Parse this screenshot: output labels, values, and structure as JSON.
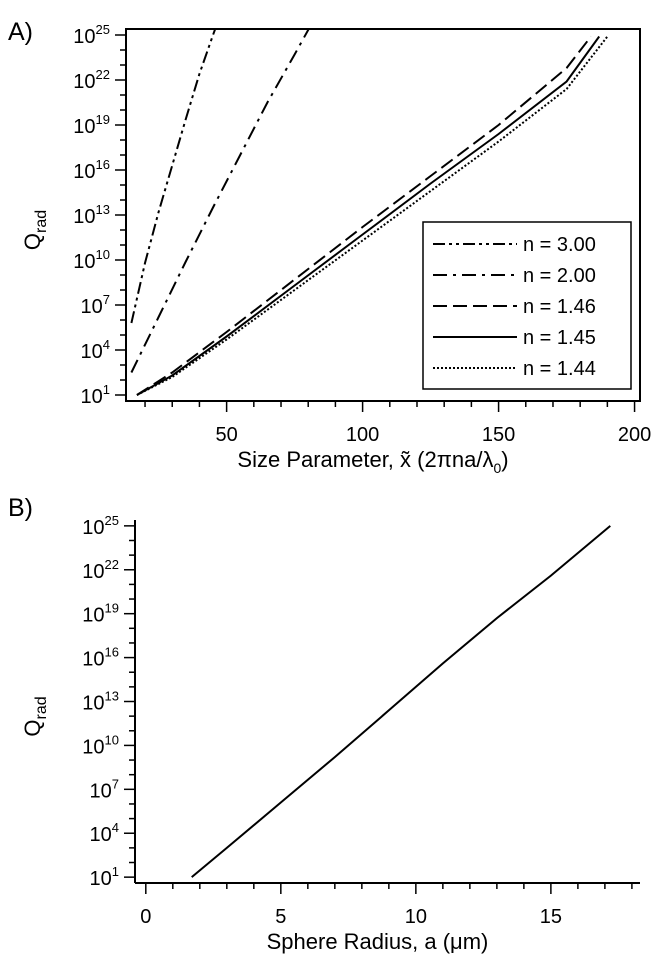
{
  "chart_data": [
    {
      "type": "line",
      "panel_label": "A)",
      "xlabel": "Size Parameter, x̃ (2πna/λ",
      "xlabel_sub": "0",
      "xlabel_close": ")",
      "ylabel": "Q",
      "ylabel_sub": "rad",
      "xlim": [
        13,
        202
      ],
      "ylim_log10": [
        0.6,
        25.4
      ],
      "y_scale": "log",
      "xticks": [
        50,
        100,
        150,
        200
      ],
      "xtick_labels": [
        "50",
        "100",
        "150",
        "200"
      ],
      "yticks_exp": [
        1,
        4,
        7,
        10,
        13,
        16,
        19,
        22,
        25
      ],
      "ytick_base": "10",
      "ytick_exp_labels": [
        "1",
        "4",
        "7",
        "10",
        "13",
        "16",
        "19",
        "22",
        "25"
      ],
      "legend_position": "bottom-right",
      "series": [
        {
          "name": "n = 3.00",
          "dash": "dash-dot-dot",
          "x": [
            15,
            20,
            25,
            30,
            35,
            40,
            45,
            47
          ],
          "log10_y": [
            5.8,
            9.8,
            13.2,
            16.3,
            19.4,
            22.4,
            25.0,
            26.0
          ]
        },
        {
          "name": "n = 2.00",
          "dash": "dash-dot",
          "x": [
            15,
            25,
            35,
            45,
            55,
            65,
            75,
            82
          ],
          "log10_y": [
            2.5,
            6.2,
            9.9,
            13.5,
            17.0,
            20.5,
            23.7,
            26.0
          ]
        },
        {
          "name": "n = 1.46",
          "dash": "dash",
          "x": [
            17,
            30,
            50,
            75,
            100,
            125,
            150,
            175,
            184
          ],
          "log10_y": [
            1.0,
            2.5,
            5.2,
            8.7,
            12.2,
            15.6,
            19.0,
            22.8,
            24.9
          ]
        },
        {
          "name": "n = 1.45",
          "dash": "solid",
          "x": [
            17,
            30,
            50,
            75,
            100,
            125,
            150,
            175,
            187
          ],
          "log10_y": [
            1.0,
            2.3,
            4.9,
            8.3,
            11.7,
            15.1,
            18.4,
            21.9,
            24.9
          ]
        },
        {
          "name": "n = 1.44",
          "dash": "dotted",
          "x": [
            17,
            30,
            50,
            75,
            100,
            125,
            150,
            175,
            190
          ],
          "log10_y": [
            1.0,
            2.2,
            4.7,
            8.0,
            11.3,
            14.6,
            17.9,
            21.4,
            24.9
          ]
        }
      ]
    },
    {
      "type": "line",
      "panel_label": "B)",
      "xlabel": "Sphere Radius, a (μm)",
      "ylabel": "Q",
      "ylabel_sub": "rad",
      "xlim": [
        -0.4,
        18.3
      ],
      "ylim_log10": [
        0.6,
        25.4
      ],
      "y_scale": "log",
      "xticks": [
        0,
        5,
        10,
        15
      ],
      "xtick_labels": [
        "0",
        "5",
        "10",
        "15"
      ],
      "xminor_step": 1,
      "yticks_exp": [
        1,
        4,
        7,
        10,
        13,
        16,
        19,
        22,
        25
      ],
      "ytick_base": "10",
      "ytick_exp_labels": [
        "1",
        "4",
        "7",
        "10",
        "13",
        "16",
        "19",
        "22",
        "25"
      ],
      "series": [
        {
          "dash": "solid",
          "x": [
            1.7,
            3,
            5,
            7,
            9,
            11,
            13,
            15,
            17.2
          ],
          "log10_y": [
            1.0,
            3.0,
            6.1,
            9.2,
            12.4,
            15.6,
            18.7,
            21.6,
            25.0
          ]
        }
      ]
    }
  ]
}
